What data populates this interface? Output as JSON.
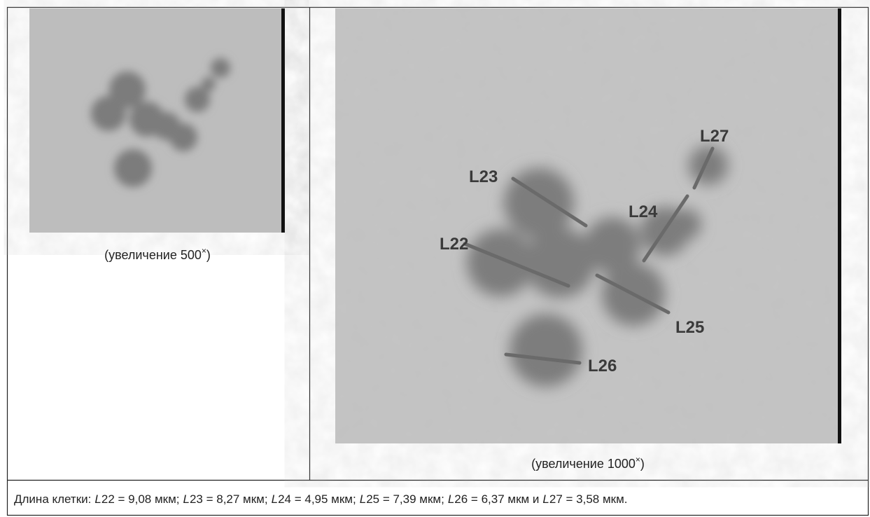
{
  "panels": [
    {
      "caption_main": "(увеличение 500",
      "caption_sup": "×",
      "caption_end": ")"
    },
    {
      "caption_main": "(увеличение 1000",
      "caption_sup": "×",
      "caption_end": ")",
      "labels": [
        "L22",
        "L23",
        "L24",
        "L25",
        "L26",
        "L27"
      ]
    }
  ],
  "footer": {
    "intro": "Длина клетки:",
    "items": [
      {
        "symbol": "L",
        "text": "22 = 9,08 мкм;"
      },
      {
        "symbol": "L",
        "text": "23 = 8,27 мкм;"
      },
      {
        "symbol": "L",
        "text": "24 = 4,95 мкм;"
      },
      {
        "symbol": "L",
        "text": "25 = 7,39 мкм;"
      },
      {
        "symbol": "L",
        "text": "26 = 6,37 мкм и"
      },
      {
        "symbol": "L",
        "text": "27 = 3,58 мкм."
      }
    ]
  }
}
